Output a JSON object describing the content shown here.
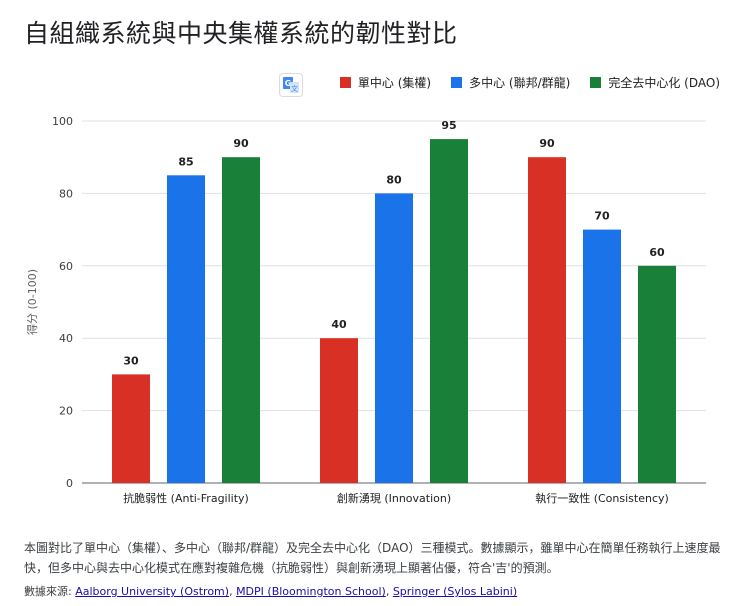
{
  "page": {
    "title": "自組織系統與中央集權系統的韌性對比",
    "description": "本圖對比了單中心（集權）、多中心（聯邦/群龍）及完全去中心化（DAO）三種模式。數據顯示，雖單中心在簡單任務執行上速度最快，但多中心與去中心化模式在應對複雜危機（抗脆弱性）與創新湧現上顯著佔優，符合'吉'的預測。",
    "sources_label": "數據來源:",
    "sources": [
      {
        "label": "Aalborg University (Ostrom)"
      },
      {
        "label": "MDPI (Bloomington School)"
      },
      {
        "label": "Springer (Sylos Labini)"
      }
    ],
    "translate_icon": "translate-icon"
  },
  "chart_data": {
    "type": "bar",
    "ylabel": "得分 (0-100)",
    "ylim": [
      0,
      100
    ],
    "yticks": [
      0,
      20,
      40,
      60,
      80,
      100
    ],
    "grid": true,
    "legend_position": "top-right",
    "categories": [
      "抗脆弱性 (Anti-Fragility)",
      "創新湧現 (Innovation)",
      "執行一致性 (Consistency)"
    ],
    "series": [
      {
        "name": "單中心 (集權)",
        "color": "#d93025",
        "values": [
          30,
          40,
          90
        ]
      },
      {
        "name": "多中心 (聯邦/群龍)",
        "color": "#1a73e8",
        "values": [
          85,
          80,
          70
        ]
      },
      {
        "name": "完全去中心化 (DAO)",
        "color": "#188038",
        "values": [
          90,
          95,
          60
        ]
      }
    ]
  }
}
